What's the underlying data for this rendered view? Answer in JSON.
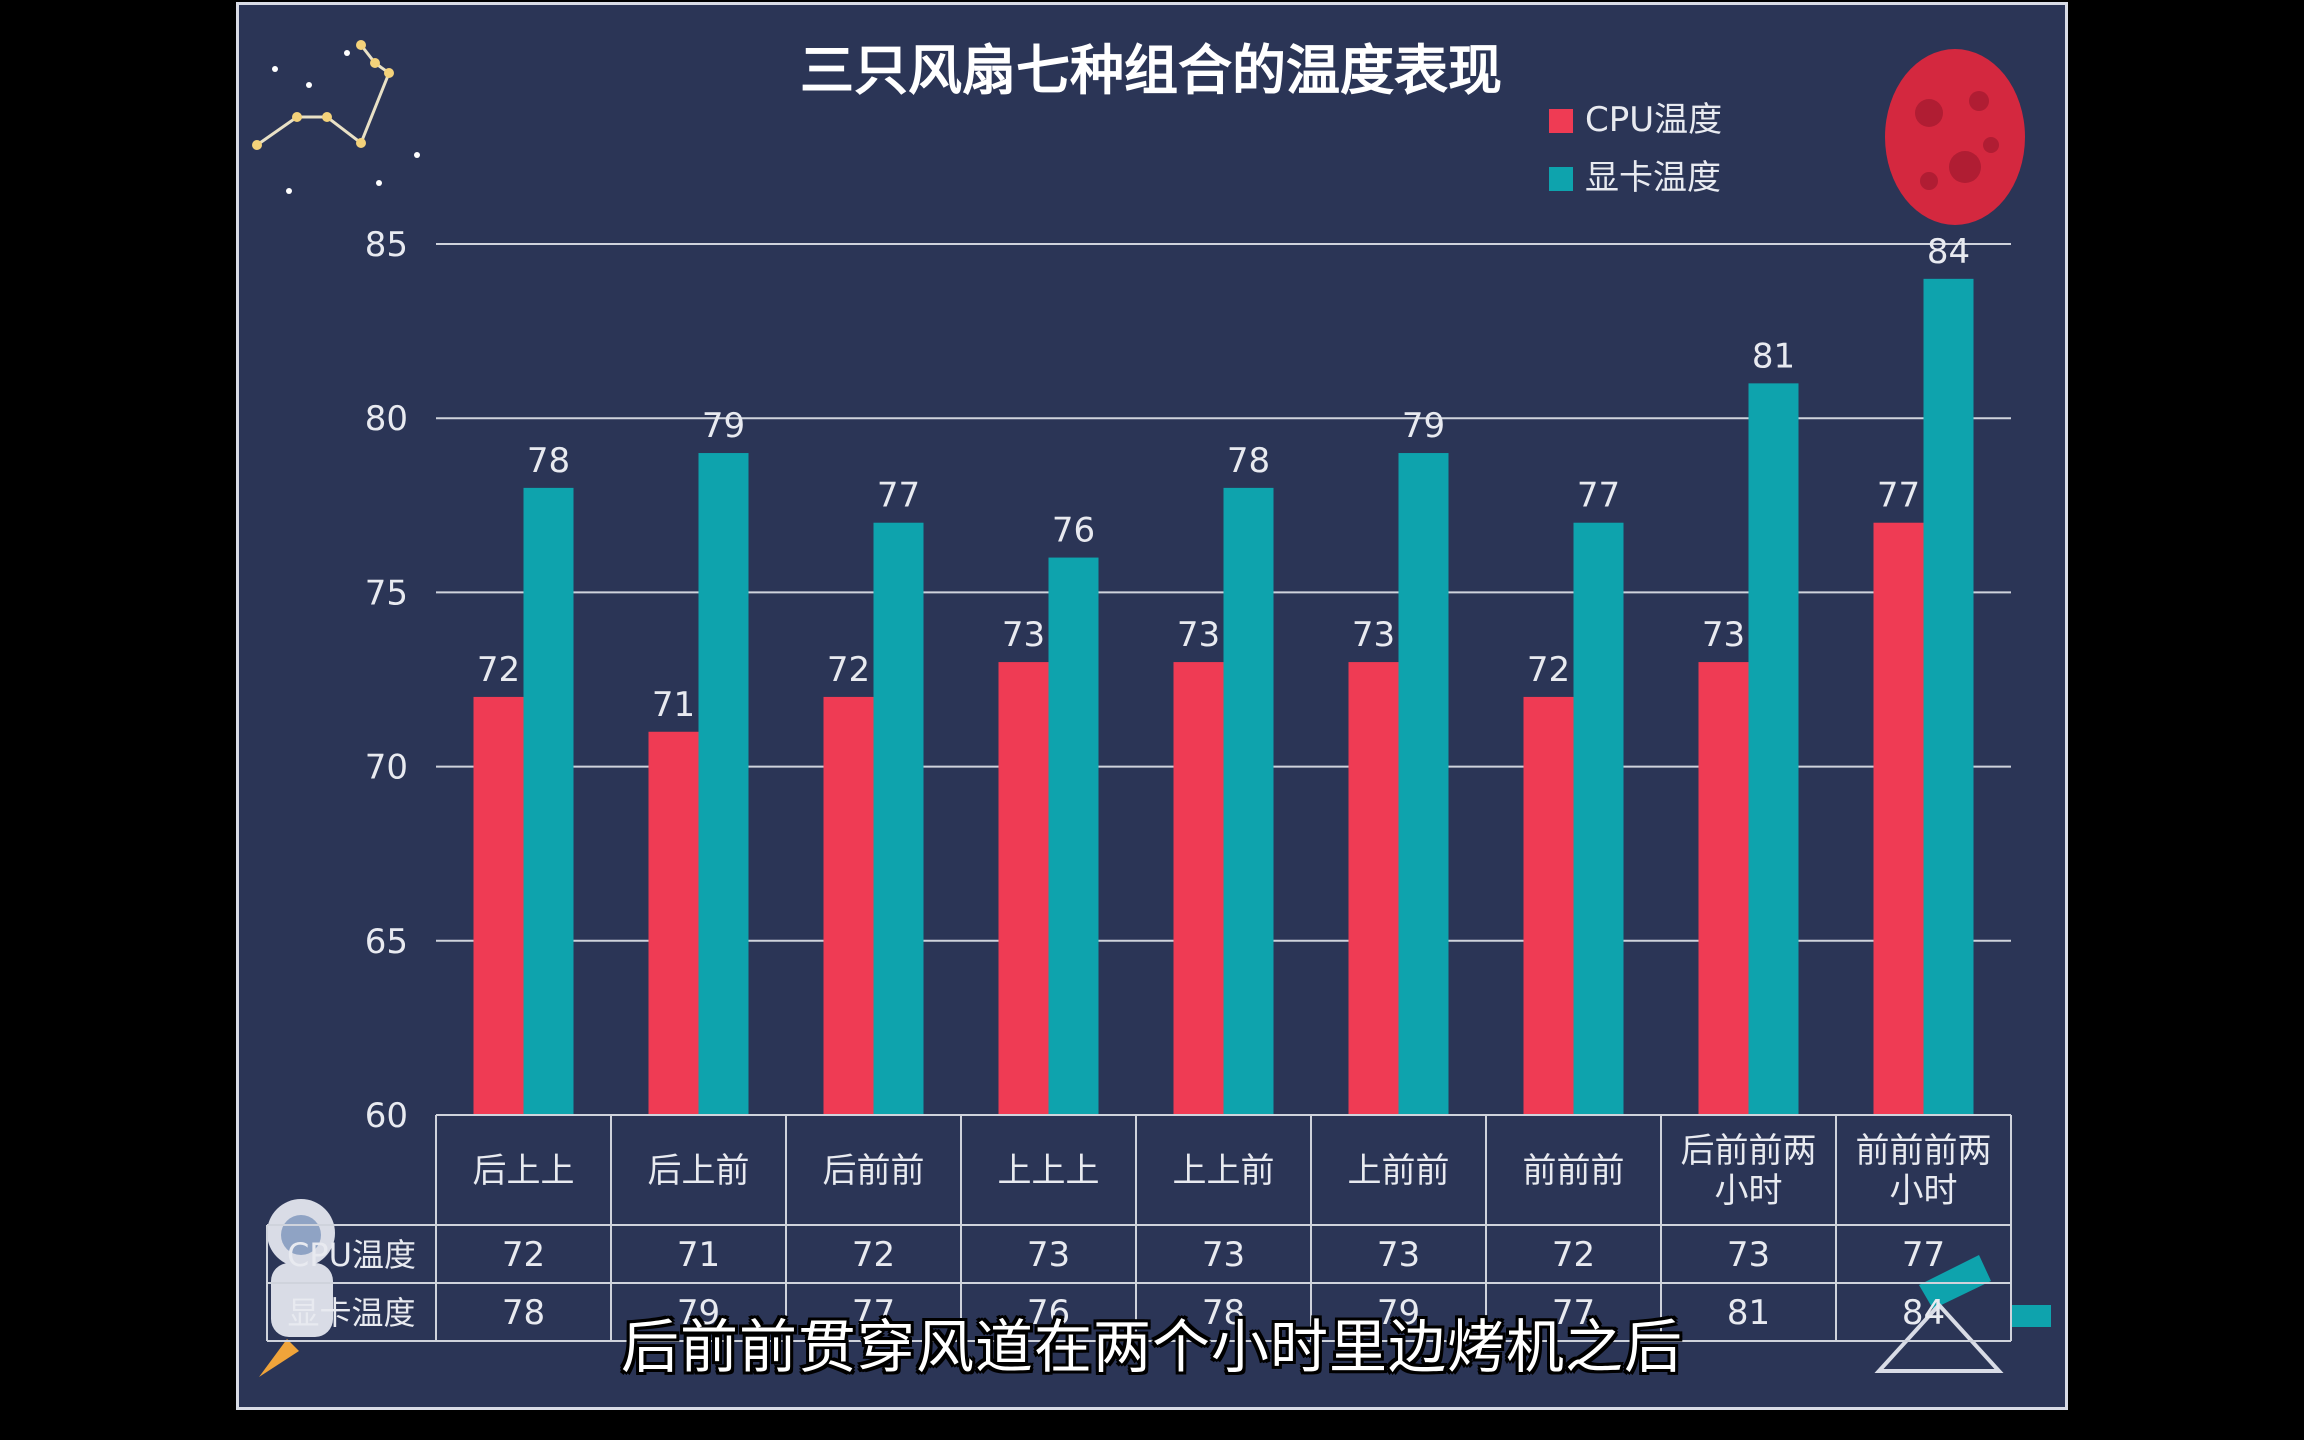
{
  "video": {
    "subtitle": "后前前贯穿风道在两个小时里边烤机之后"
  },
  "colors": {
    "background": "#2b3556",
    "cpu": "#ef3b54",
    "gpu": "#0ea3ad",
    "grid": "#cfd3dc",
    "text": "#e8eaf0"
  },
  "chart_data": {
    "type": "bar",
    "title": "三只风扇七种组合的温度表现",
    "categories": [
      "后上上",
      "后上前",
      "后前前",
      "上上上",
      "上上前",
      "上前前",
      "前前前",
      "后前前两\n小时",
      "前前前两\n小时"
    ],
    "series": [
      {
        "name": "CPU温度",
        "values": [
          72,
          71,
          72,
          73,
          73,
          73,
          72,
          73,
          77
        ]
      },
      {
        "name": "显卡温度",
        "values": [
          78,
          79,
          77,
          76,
          78,
          79,
          77,
          81,
          84
        ]
      }
    ],
    "ylim": [
      60,
      85
    ],
    "yticks": [
      60,
      65,
      70,
      75,
      80,
      85
    ],
    "grid": true,
    "legend_position": "top-right",
    "data_table": true
  }
}
